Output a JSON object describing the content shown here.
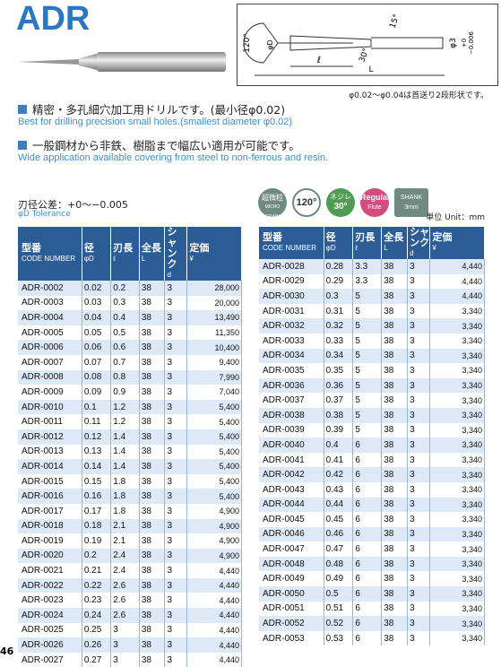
{
  "header": {
    "title": "ADR",
    "note": "φ0.02〜φ0.04は首送り2段形状です。"
  },
  "diagram": {
    "angle_point": "120°",
    "dia": "φD",
    "helix_mark": "15°",
    "shank": "φ3",
    "tol_upper": "+0",
    "tol_lower": "−0.006",
    "flute": "ℓ",
    "helix": "30°",
    "length": "L"
  },
  "features": [
    {
      "jp": "精密・多孔細穴加工用ドリルです。(最小径φ0.02)",
      "en": "Best for drilling precision small holes.(smallest diameter φ0.02)"
    },
    {
      "jp": "一般鋼材から非鉄、樹脂まで幅広い適用が可能です。",
      "en": "Wide application available covering from steel to non-ferrous and resin."
    }
  ],
  "tolerance": {
    "jp": "刃径公差：+0〜−0.005",
    "en": "φD Tolerance"
  },
  "icons": [
    {
      "top": "超微粒",
      "bottom": "MICRO GRAIN"
    },
    {
      "top": "120°"
    },
    {
      "top": "ネジレ",
      "bottom": "30°"
    },
    {
      "top": "Regular",
      "bottom": "Flute"
    },
    {
      "top": "SHANK",
      "bottom": "3mm"
    }
  ],
  "unit": "単位 Unit：mm",
  "table": {
    "headers": [
      [
        "型番",
        "CODE NUMBER"
      ],
      [
        "径",
        "φD"
      ],
      [
        "刃長",
        "ℓ"
      ],
      [
        "全長",
        "L"
      ],
      [
        "シャンク",
        "d"
      ],
      [
        "定価",
        "¥"
      ]
    ],
    "left": [
      [
        "ADR-0002",
        "0.02",
        "0.2",
        "38",
        "3",
        "28,000"
      ],
      [
        "ADR-0003",
        "0.03",
        "0.3",
        "38",
        "3",
        "20,000"
      ],
      [
        "ADR-0004",
        "0.04",
        "0.4",
        "38",
        "3",
        "13,490"
      ],
      [
        "ADR-0005",
        "0.05",
        "0.5",
        "38",
        "3",
        "11,350"
      ],
      [
        "ADR-0006",
        "0.06",
        "0.6",
        "38",
        "3",
        "10,400"
      ],
      [
        "ADR-0007",
        "0.07",
        "0.7",
        "38",
        "3",
        "9,400"
      ],
      [
        "ADR-0008",
        "0.08",
        "0.8",
        "38",
        "3",
        "7,990"
      ],
      [
        "ADR-0009",
        "0.09",
        "0.9",
        "38",
        "3",
        "7,040"
      ],
      [
        "ADR-0010",
        "0.1",
        "1.2",
        "38",
        "3",
        "5,400"
      ],
      [
        "ADR-0011",
        "0.11",
        "1.2",
        "38",
        "3",
        "5,400"
      ],
      [
        "ADR-0012",
        "0.12",
        "1.4",
        "38",
        "3",
        "5,400"
      ],
      [
        "ADR-0013",
        "0.13",
        "1.4",
        "38",
        "3",
        "5,400"
      ],
      [
        "ADR-0014",
        "0.14",
        "1.4",
        "38",
        "3",
        "5,400"
      ],
      [
        "ADR-0015",
        "0.15",
        "1.8",
        "38",
        "3",
        "5,400"
      ],
      [
        "ADR-0016",
        "0.16",
        "1.8",
        "38",
        "3",
        "5,400"
      ],
      [
        "ADR-0017",
        "0.17",
        "1.8",
        "38",
        "3",
        "4,900"
      ],
      [
        "ADR-0018",
        "0.18",
        "2.1",
        "38",
        "3",
        "4,900"
      ],
      [
        "ADR-0019",
        "0.19",
        "2.1",
        "38",
        "3",
        "4,900"
      ],
      [
        "ADR-0020",
        "0.2",
        "2.4",
        "38",
        "3",
        "4,900"
      ],
      [
        "ADR-0021",
        "0.21",
        "2.4",
        "38",
        "3",
        "4,440"
      ],
      [
        "ADR-0022",
        "0.22",
        "2.6",
        "38",
        "3",
        "4,440"
      ],
      [
        "ADR-0023",
        "0.23",
        "2.6",
        "38",
        "3",
        "4,440"
      ],
      [
        "ADR-0024",
        "0.24",
        "2.6",
        "38",
        "3",
        "4,440"
      ],
      [
        "ADR-0025",
        "0.25",
        "3",
        "38",
        "3",
        "4,440"
      ],
      [
        "ADR-0026",
        "0.26",
        "3",
        "38",
        "3",
        "4,440"
      ],
      [
        "ADR-0027",
        "0.27",
        "3",
        "38",
        "3",
        "4,440"
      ]
    ],
    "right": [
      [
        "ADR-0028",
        "0.28",
        "3.3",
        "38",
        "3",
        "4,440"
      ],
      [
        "ADR-0029",
        "0.29",
        "3.3",
        "38",
        "3",
        "4,440"
      ],
      [
        "ADR-0030",
        "0.3",
        "5",
        "38",
        "3",
        "4,440"
      ],
      [
        "ADR-0031",
        "0.31",
        "5",
        "38",
        "3",
        "3,340"
      ],
      [
        "ADR-0032",
        "0.32",
        "5",
        "38",
        "3",
        "3,340"
      ],
      [
        "ADR-0033",
        "0.33",
        "5",
        "38",
        "3",
        "3,340"
      ],
      [
        "ADR-0034",
        "0.34",
        "5",
        "38",
        "3",
        "3,340"
      ],
      [
        "ADR-0035",
        "0.35",
        "5",
        "38",
        "3",
        "3,340"
      ],
      [
        "ADR-0036",
        "0.36",
        "5",
        "38",
        "3",
        "3,340"
      ],
      [
        "ADR-0037",
        "0.37",
        "5",
        "38",
        "3",
        "3,340"
      ],
      [
        "ADR-0038",
        "0.38",
        "5",
        "38",
        "3",
        "3,340"
      ],
      [
        "ADR-0039",
        "0.39",
        "5",
        "38",
        "3",
        "3,340"
      ],
      [
        "ADR-0040",
        "0.4",
        "6",
        "38",
        "3",
        "3,340"
      ],
      [
        "ADR-0041",
        "0.41",
        "6",
        "38",
        "3",
        "3,340"
      ],
      [
        "ADR-0042",
        "0.42",
        "6",
        "38",
        "3",
        "3,340"
      ],
      [
        "ADR-0043",
        "0.43",
        "6",
        "38",
        "3",
        "3,340"
      ],
      [
        "ADR-0044",
        "0.44",
        "6",
        "38",
        "3",
        "3,340"
      ],
      [
        "ADR-0045",
        "0.45",
        "6",
        "38",
        "3",
        "3,340"
      ],
      [
        "ADR-0046",
        "0.46",
        "6",
        "38",
        "3",
        "3,340"
      ],
      [
        "ADR-0047",
        "0.47",
        "6",
        "38",
        "3",
        "3,340"
      ],
      [
        "ADR-0048",
        "0.48",
        "6",
        "38",
        "3",
        "3,340"
      ],
      [
        "ADR-0049",
        "0.49",
        "6",
        "38",
        "3",
        "3,340"
      ],
      [
        "ADR-0050",
        "0.5",
        "6",
        "38",
        "3",
        "3,340"
      ],
      [
        "ADR-0051",
        "0.51",
        "6",
        "38",
        "3",
        "3,340"
      ],
      [
        "ADR-0052",
        "0.52",
        "6",
        "38",
        "3",
        "3,340"
      ],
      [
        "ADR-0053",
        "0.53",
        "6",
        "38",
        "3",
        "3,340"
      ]
    ]
  },
  "page_number": "46"
}
